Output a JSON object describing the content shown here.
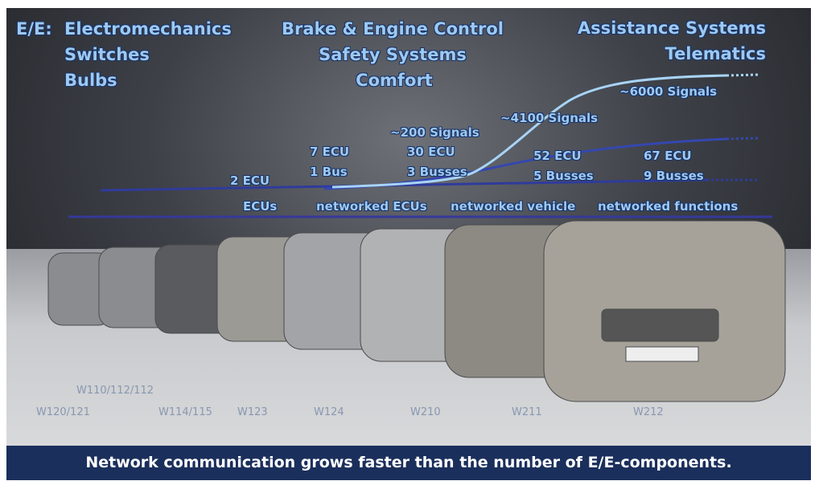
{
  "ee_label": "E/E:",
  "eras": [
    {
      "lines": [
        "Electromechanics",
        "Switches",
        "Bulbs"
      ]
    },
    {
      "lines": [
        "Brake & Engine Control",
        "Safety Systems",
        "Comfort"
      ]
    },
    {
      "lines": [
        "Assistance Systems",
        "Telematics"
      ]
    }
  ],
  "signals": [
    "~200 Signals",
    "~4100 Signals",
    "~6000 Signals"
  ],
  "ecu_groups": [
    {
      "ecu": "2 ECU"
    },
    {
      "ecu": "7 ECU",
      "bus": "1 Bus"
    },
    {
      "ecu": "30 ECU",
      "bus": "3 Busses"
    },
    {
      "ecu": "52 ECU",
      "bus": "5 Busses"
    },
    {
      "ecu": "67 ECU",
      "bus": "9 Busses"
    }
  ],
  "phases": [
    "ECUs",
    "networked ECUs",
    "networked vehicle",
    "networked functions"
  ],
  "models": [
    "W110/112/112",
    "W120/121",
    "W114/115",
    "W123",
    "W124",
    "W210",
    "W211",
    "W212"
  ],
  "caption": "Network communication grows faster than the number of E/E-components."
}
